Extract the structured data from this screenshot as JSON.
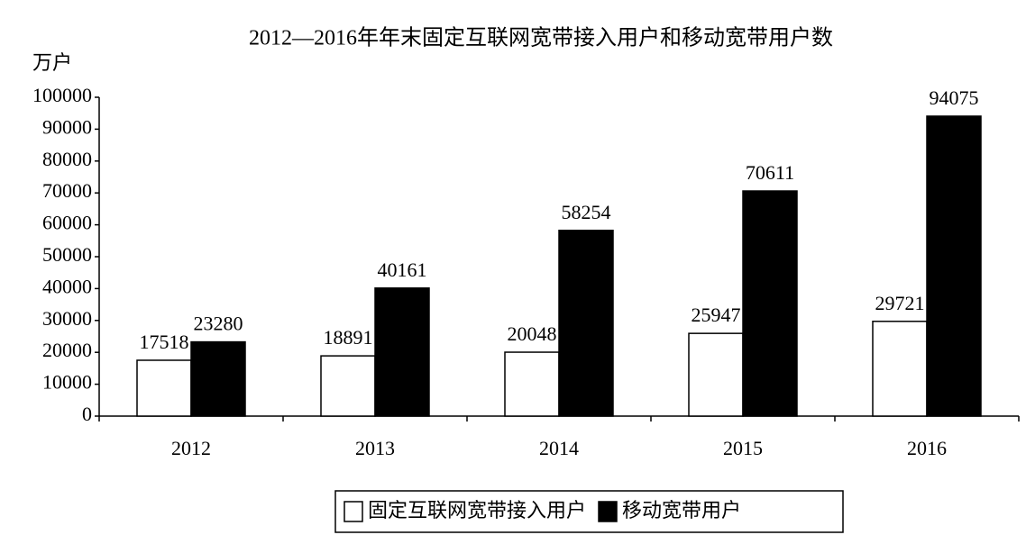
{
  "chart_data": {
    "type": "grouped_bar",
    "title": "2012—2016年年末固定互联网宽带接入用户和移动宽带用户数",
    "y_label": "万户",
    "categories": [
      "2012",
      "2013",
      "2014",
      "2015",
      "2016"
    ],
    "series": [
      {
        "name": "固定互联网宽带接入用户",
        "color": "#ffffff",
        "edgecolor": "#000000",
        "values": [
          17518,
          18891,
          20048,
          25947,
          29721
        ]
      },
      {
        "name": "移动宽带用户",
        "color": "#000000",
        "edgecolor": "#000000",
        "values": [
          23280,
          40161,
          58254,
          70611,
          94075
        ]
      }
    ],
    "ylim": [
      0,
      100000
    ],
    "yticks": [
      0,
      10000,
      20000,
      30000,
      40000,
      50000,
      60000,
      70000,
      80000,
      90000,
      100000
    ],
    "grid": false,
    "legend": "bottom"
  }
}
